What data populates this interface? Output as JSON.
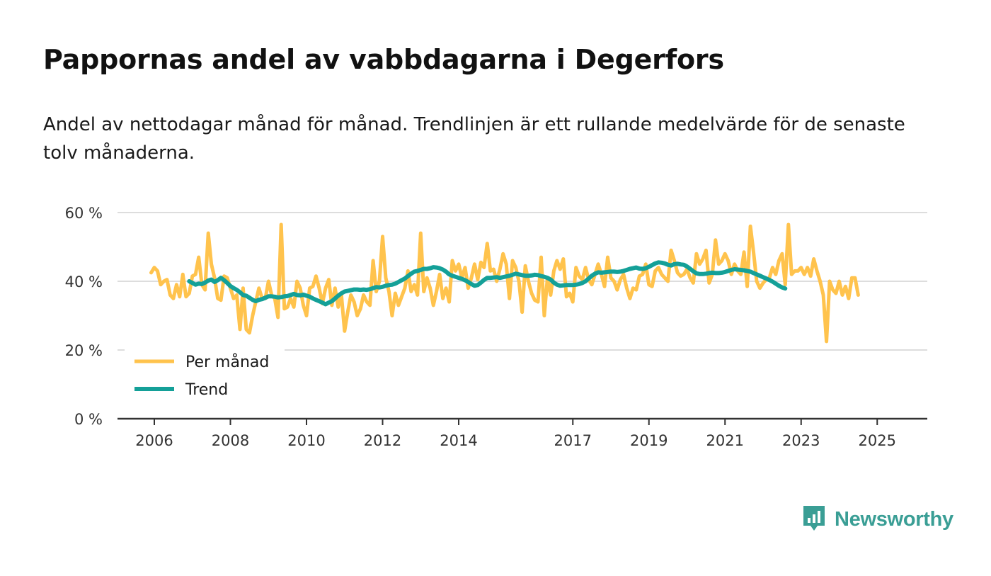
{
  "header": {
    "title": "Pappornas andel av vabbdagarna i Degerfors",
    "subtitle": "Andel av nettodagar månad för månad. Trendlinjen är ett rullande medelvärde för de senaste tolv månaderna."
  },
  "brand": {
    "name": "Newsworthy",
    "icon": "newsworthy-logo-icon",
    "color": "#3a9e95"
  },
  "colors": {
    "monthly": "#ffc34d",
    "trend": "#14a098",
    "grid": "#dddddd",
    "axis": "#333333"
  },
  "chart_data": {
    "type": "line",
    "title": "Pappornas andel av vabbdagarna i Degerfors",
    "xlabel": "",
    "ylabel": "",
    "x_start": 2005.917,
    "x_step": 0.08333,
    "xlim": [
      2005.0,
      2026.3
    ],
    "ylim": [
      0,
      60
    ],
    "yticks": [
      0,
      20,
      40,
      60
    ],
    "ytick_labels": [
      "0 %",
      "20 %",
      "40 %",
      "60 %"
    ],
    "xticks": [
      2006,
      2008,
      2010,
      2012,
      2014,
      2017,
      2019,
      2021,
      2023,
      2025
    ],
    "xtick_labels": [
      "2006",
      "2008",
      "2010",
      "2012",
      "2014",
      "2017",
      "2019",
      "2021",
      "2023",
      "2025"
    ],
    "legend": {
      "position": "bottom-left",
      "entries": [
        "Per månad",
        "Trend"
      ]
    },
    "series": [
      {
        "name": "Per månad",
        "values": [
          42.5,
          44.0,
          43.0,
          39.0,
          40.0,
          40.5,
          36.0,
          35.0,
          39.0,
          35.5,
          42.0,
          35.5,
          36.5,
          41.5,
          42.0,
          47.0,
          39.0,
          37.5,
          54.0,
          45.0,
          41.0,
          35.0,
          34.5,
          41.5,
          41.0,
          38.0,
          35.0,
          36.0,
          26.0,
          38.0,
          26.0,
          25.0,
          30.0,
          34.0,
          38.0,
          35.0,
          35.0,
          40.0,
          36.0,
          35.0,
          29.5,
          56.5,
          32.0,
          32.5,
          35.0,
          32.5,
          40.0,
          38.0,
          33.0,
          30.0,
          38.0,
          38.5,
          41.5,
          38.0,
          33.5,
          38.0,
          40.5,
          33.0,
          38.0,
          32.5,
          36.0,
          25.5,
          31.0,
          36.0,
          34.0,
          30.0,
          32.0,
          36.0,
          34.0,
          33.0,
          46.0,
          37.0,
          40.0,
          53.0,
          41.0,
          37.0,
          30.0,
          36.5,
          33.0,
          35.5,
          38.0,
          43.0,
          37.0,
          39.0,
          36.0,
          54.0,
          37.0,
          41.0,
          38.0,
          33.0,
          37.0,
          42.0,
          35.0,
          38.0,
          34.0,
          46.0,
          43.0,
          45.0,
          41.0,
          44.0,
          38.0,
          41.0,
          45.0,
          40.5,
          45.5,
          44.0,
          51.0,
          43.0,
          43.5,
          40.0,
          43.5,
          48.0,
          45.0,
          35.0,
          46.0,
          44.0,
          40.0,
          31.0,
          44.5,
          40.0,
          36.5,
          34.5,
          34.0,
          47.0,
          30.0,
          41.0,
          36.0,
          43.0,
          46.0,
          43.5,
          46.5,
          35.5,
          36.5,
          34.0,
          44.0,
          41.5,
          40.5,
          44.0,
          40.5,
          39.0,
          42.0,
          45.0,
          42.0,
          38.5,
          47.0,
          41.0,
          40.0,
          37.5,
          40.5,
          42.0,
          38.0,
          35.0,
          38.0,
          37.5,
          41.5,
          42.0,
          45.0,
          39.0,
          38.5,
          43.0,
          44.0,
          42.0,
          41.0,
          40.0,
          49.0,
          46.0,
          42.5,
          41.5,
          42.0,
          43.5,
          41.0,
          39.5,
          48.0,
          45.0,
          46.5,
          49.0,
          39.5,
          42.0,
          52.0,
          45.0,
          46.0,
          48.0,
          46.0,
          42.0,
          45.0,
          43.0,
          42.0,
          48.5,
          38.5,
          56.0,
          48.5,
          40.0,
          38.0,
          39.5,
          40.5,
          41.0,
          44.0,
          42.0,
          46.0,
          48.0,
          39.0,
          56.5,
          42.0,
          43.0,
          43.0,
          44.0,
          42.0,
          44.0,
          41.5,
          46.5,
          43.0,
          40.0,
          36.0,
          22.5,
          40.0,
          37.5,
          36.5,
          40.0,
          36.0,
          38.5,
          35.0,
          41.0,
          41.0,
          36.0
        ]
      },
      {
        "name": "Trend",
        "x_start": 2006.917,
        "values": [
          40.0,
          39.5,
          39.0,
          39.3,
          39.2,
          39.6,
          40.2,
          40.5,
          39.8,
          40.3,
          41.0,
          40.3,
          39.5,
          38.6,
          38.0,
          37.5,
          36.8,
          36.0,
          35.8,
          35.2,
          34.6,
          34.2,
          34.6,
          34.8,
          35.2,
          35.6,
          35.6,
          35.5,
          35.3,
          35.4,
          35.6,
          35.7,
          36.0,
          36.3,
          36.0,
          35.9,
          36.1,
          35.8,
          35.5,
          35.0,
          34.6,
          34.2,
          33.8,
          33.3,
          33.8,
          34.2,
          35.0,
          35.8,
          36.5,
          37.0,
          37.2,
          37.4,
          37.6,
          37.6,
          37.5,
          37.6,
          37.5,
          37.7,
          38.0,
          38.3,
          38.2,
          38.4,
          38.7,
          38.9,
          39.0,
          39.3,
          39.8,
          40.3,
          40.8,
          41.5,
          42.2,
          42.8,
          43.0,
          43.3,
          43.6,
          43.6,
          43.8,
          44.1,
          44.0,
          43.8,
          43.4,
          42.8,
          42.0,
          41.6,
          41.3,
          41.0,
          40.7,
          40.3,
          39.8,
          39.2,
          38.7,
          38.9,
          39.6,
          40.4,
          41.0,
          41.0,
          41.1,
          41.2,
          41.0,
          41.2,
          41.4,
          41.6,
          41.9,
          42.2,
          42.0,
          41.8,
          41.6,
          41.6,
          41.7,
          41.9,
          41.8,
          41.5,
          41.3,
          41.0,
          40.5,
          39.6,
          39.0,
          38.7,
          38.8,
          38.9,
          38.9,
          38.9,
          39.0,
          39.2,
          39.5,
          40.0,
          40.8,
          41.6,
          42.2,
          42.6,
          42.5,
          42.6,
          42.7,
          42.8,
          42.8,
          42.7,
          42.8,
          43.0,
          43.3,
          43.6,
          43.8,
          44.0,
          43.7,
          43.6,
          43.8,
          44.2,
          44.7,
          45.2,
          45.5,
          45.4,
          45.2,
          44.8,
          44.6,
          45.0,
          45.1,
          44.9,
          44.8,
          44.3,
          43.6,
          42.9,
          42.3,
          42.1,
          42.1,
          42.2,
          42.4,
          42.5,
          42.4,
          42.4,
          42.5,
          42.7,
          43.0,
          43.3,
          43.5,
          43.4,
          43.3,
          43.2,
          43.0,
          42.8,
          42.4,
          42.0,
          41.6,
          41.2,
          40.8,
          40.4,
          39.9,
          39.3,
          38.7,
          38.2,
          37.9
        ]
      }
    ]
  }
}
